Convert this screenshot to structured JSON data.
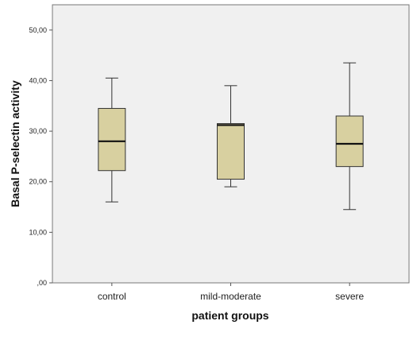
{
  "chart_data": {
    "type": "boxplot",
    "xlabel": "patient groups",
    "ylabel": "Basal P-selectin activity",
    "ylim": [
      0,
      55
    ],
    "yticks": [
      0,
      10,
      20,
      30,
      40,
      50
    ],
    "ytick_labels": [
      ",00",
      "10,00",
      "20,00",
      "30,00",
      "40,00",
      "50,00"
    ],
    "grid": false,
    "categories": [
      "control",
      "mild-moderate",
      "severe"
    ],
    "boxes": [
      {
        "min": 16.0,
        "q1": 22.2,
        "median": 28.0,
        "q3": 34.5,
        "max": 40.5
      },
      {
        "min": 19.0,
        "q1": 20.5,
        "median": 31.2,
        "q3": 31.5,
        "max": 39.0
      },
      {
        "min": 14.5,
        "q1": 23.0,
        "median": 27.5,
        "q3": 33.0,
        "max": 43.5
      }
    ],
    "colors": {
      "plot_bg": "#f0f0f0",
      "box_fill": "#d8d0a0",
      "stroke": "#333333"
    }
  }
}
